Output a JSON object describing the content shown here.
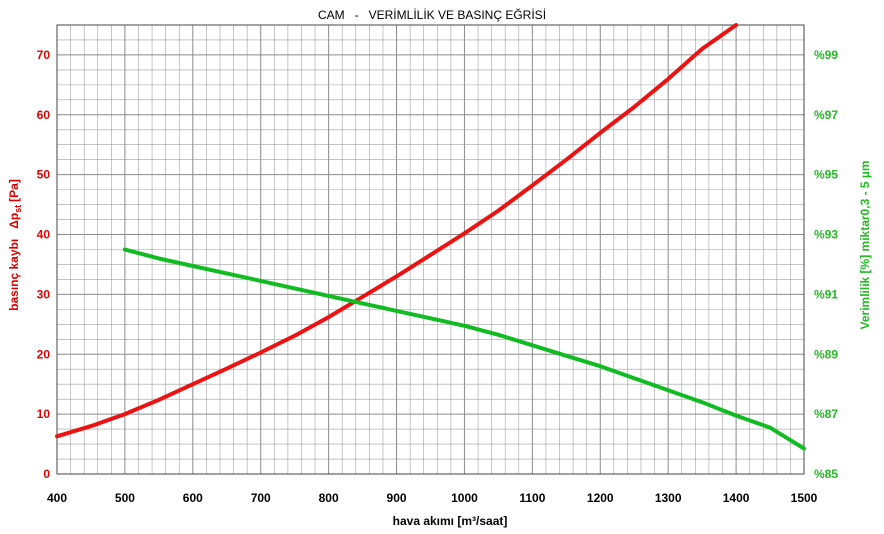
{
  "chart_data": {
    "type": "line",
    "title": "CAM   -   VERİMLİLİK VE BASINÇ EĞRİSİ",
    "xlabel": "hava akımı [m³/saat]",
    "ylabel_left": "basınç kaybı   Δp",
    "ylabel_left_subscript": "st",
    "ylabel_left_unit": "[Pa]",
    "ylabel_right": "Verimlilik [%] miktar0,3 - 5 µm",
    "xlim": [
      400,
      1500
    ],
    "ylim_left": [
      0,
      75
    ],
    "ylim_right": [
      85,
      100
    ],
    "grid": true,
    "x_ticks": [
      "400",
      "500",
      "600",
      "700",
      "800",
      "900",
      "1000",
      "1100",
      "1200",
      "1300",
      "1400",
      "1500"
    ],
    "y_left_ticks": [
      "0",
      "10",
      "20",
      "30",
      "40",
      "50",
      "60",
      "70"
    ],
    "y_right_ticks": [
      "%85",
      "%87",
      "%89",
      "%91",
      "%93",
      "%95",
      "%97",
      "%99"
    ],
    "colors": {
      "pressure": "#ee1111",
      "efficiency": "#11bb22",
      "grid": "#a0a0a0"
    },
    "series": [
      {
        "axis": "left",
        "x": [
          400,
          450,
          500,
          550,
          600,
          650,
          700,
          750,
          800,
          850,
          900,
          950,
          1000,
          1050,
          1100,
          1150,
          1200,
          1250,
          1300,
          1350,
          1400
        ],
        "y": [
          6.3,
          8,
          10,
          12.4,
          15,
          17.6,
          20.3,
          23.1,
          26.2,
          29.6,
          33,
          36.6,
          40.2,
          44,
          48.2,
          52.5,
          57,
          61.3,
          66,
          71,
          76
        ]
      },
      {
        "axis": "right",
        "x": [
          500,
          550,
          600,
          650,
          700,
          750,
          800,
          850,
          900,
          950,
          1000,
          1050,
          1100,
          1150,
          1200,
          1250,
          1300,
          1350,
          1400,
          1450,
          1500
        ],
        "y": [
          92.5,
          92.2,
          91.95,
          91.7,
          91.45,
          91.2,
          90.95,
          90.7,
          90.45,
          90.2,
          89.95,
          89.65,
          89.3,
          88.95,
          88.6,
          88.2,
          87.8,
          87.4,
          86.95,
          86.55,
          85.85
        ]
      }
    ]
  }
}
